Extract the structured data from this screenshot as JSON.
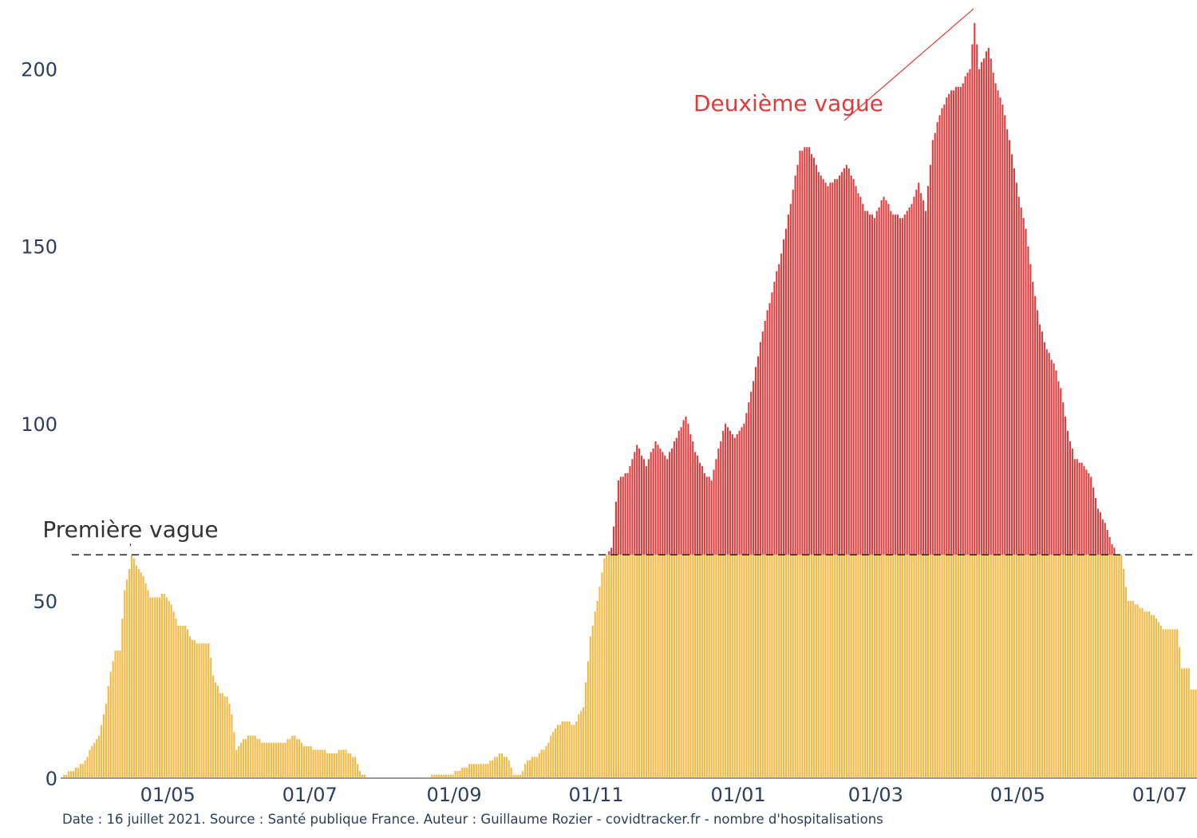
{
  "caption": "Date : 16 juillet 2021. Source : Santé publique France. Auteur : Guillaume Rozier - covidtracker.fr - nombre d'hospitalisations",
  "chart_data": {
    "type": "bar",
    "stacked": true,
    "x_range": [
      "2020-03-16",
      "2021-07-16"
    ],
    "ylim": [
      0,
      215
    ],
    "yticks": [
      0,
      50,
      100,
      150,
      200
    ],
    "xticks": [
      {
        "date": "2020-05-01",
        "label": "01/05"
      },
      {
        "date": "2020-07-01",
        "label": "01/07"
      },
      {
        "date": "2020-09-01",
        "label": "01/09"
      },
      {
        "date": "2020-11-01",
        "label": "01/11"
      },
      {
        "date": "2021-01-01",
        "label": "01/01"
      },
      {
        "date": "2021-03-01",
        "label": "01/03"
      },
      {
        "date": "2021-05-01",
        "label": "01/05"
      },
      {
        "date": "2021-07-01",
        "label": "01/07"
      }
    ],
    "threshold": 63,
    "grid": false,
    "colors": {
      "base": "#f5b942",
      "excess": "#e13a3a",
      "threshold": "#222222",
      "zero_line": "#999999"
    },
    "annotations": [
      {
        "text": "Première vague",
        "date": "2020-04-15",
        "y": 63,
        "color": "#333333"
      },
      {
        "text": "Deuxième vague",
        "date": "2021-04-12",
        "y": 217,
        "color": "#e13a3a"
      }
    ],
    "anchors": [
      [
        "2020-03-16",
        0
      ],
      [
        "2020-03-18",
        1
      ],
      [
        "2020-03-20",
        2
      ],
      [
        "2020-03-23",
        3
      ],
      [
        "2020-03-26",
        5
      ],
      [
        "2020-03-29",
        9
      ],
      [
        "2020-04-01",
        12
      ],
      [
        "2020-04-04",
        21
      ],
      [
        "2020-04-06",
        30
      ],
      [
        "2020-04-08",
        36
      ],
      [
        "2020-04-10",
        36
      ],
      [
        "2020-04-12",
        53
      ],
      [
        "2020-04-14",
        59
      ],
      [
        "2020-04-15",
        63
      ],
      [
        "2020-04-17",
        60
      ],
      [
        "2020-04-20",
        57
      ],
      [
        "2020-04-23",
        51
      ],
      [
        "2020-04-26",
        51
      ],
      [
        "2020-04-29",
        52
      ],
      [
        "2020-05-02",
        49
      ],
      [
        "2020-05-05",
        43
      ],
      [
        "2020-05-08",
        43
      ],
      [
        "2020-05-11",
        39
      ],
      [
        "2020-05-14",
        38
      ],
      [
        "2020-05-18",
        38
      ],
      [
        "2020-05-20",
        29
      ],
      [
        "2020-05-23",
        24
      ],
      [
        "2020-05-26",
        23
      ],
      [
        "2020-05-28",
        18
      ],
      [
        "2020-05-30",
        8
      ],
      [
        "2020-06-02",
        11
      ],
      [
        "2020-06-06",
        12
      ],
      [
        "2020-06-10",
        10
      ],
      [
        "2020-06-20",
        10
      ],
      [
        "2020-06-24",
        12
      ],
      [
        "2020-06-28",
        9
      ],
      [
        "2020-07-05",
        8
      ],
      [
        "2020-07-10",
        7
      ],
      [
        "2020-07-15",
        8
      ],
      [
        "2020-07-20",
        6
      ],
      [
        "2020-07-22",
        2
      ],
      [
        "2020-07-25",
        0
      ],
      [
        "2020-08-20",
        0
      ],
      [
        "2020-08-24",
        1
      ],
      [
        "2020-08-30",
        1
      ],
      [
        "2020-09-02",
        2
      ],
      [
        "2020-09-08",
        4
      ],
      [
        "2020-09-15",
        4
      ],
      [
        "2020-09-20",
        7
      ],
      [
        "2020-09-24",
        5
      ],
      [
        "2020-09-26",
        1
      ],
      [
        "2020-09-29",
        1
      ],
      [
        "2020-10-02",
        5
      ],
      [
        "2020-10-06",
        6
      ],
      [
        "2020-10-10",
        9
      ],
      [
        "2020-10-14",
        14
      ],
      [
        "2020-10-18",
        16
      ],
      [
        "2020-10-22",
        15
      ],
      [
        "2020-10-26",
        20
      ],
      [
        "2020-10-29",
        40
      ],
      [
        "2020-11-01",
        50
      ],
      [
        "2020-11-04",
        62
      ],
      [
        "2020-11-07",
        65
      ],
      [
        "2020-11-10",
        84
      ],
      [
        "2020-11-14",
        86
      ],
      [
        "2020-11-18",
        94
      ],
      [
        "2020-11-22",
        88
      ],
      [
        "2020-11-26",
        95
      ],
      [
        "2020-12-01",
        90
      ],
      [
        "2020-12-05",
        96
      ],
      [
        "2020-12-09",
        102
      ],
      [
        "2020-12-13",
        92
      ],
      [
        "2020-12-17",
        86
      ],
      [
        "2020-12-20",
        84
      ],
      [
        "2020-12-23",
        93
      ],
      [
        "2020-12-26",
        100
      ],
      [
        "2020-12-30",
        96
      ],
      [
        "2021-01-03",
        100
      ],
      [
        "2021-01-07",
        112
      ],
      [
        "2021-01-11",
        126
      ],
      [
        "2021-01-15",
        137
      ],
      [
        "2021-01-19",
        148
      ],
      [
        "2021-01-23",
        162
      ],
      [
        "2021-01-27",
        177
      ],
      [
        "2021-01-31",
        178
      ],
      [
        "2021-02-04",
        171
      ],
      [
        "2021-02-08",
        167
      ],
      [
        "2021-02-12",
        169
      ],
      [
        "2021-02-16",
        173
      ],
      [
        "2021-02-20",
        167
      ],
      [
        "2021-02-24",
        160
      ],
      [
        "2021-02-28",
        158
      ],
      [
        "2021-03-04",
        164
      ],
      [
        "2021-03-08",
        159
      ],
      [
        "2021-03-12",
        158
      ],
      [
        "2021-03-16",
        162
      ],
      [
        "2021-03-19",
        168
      ],
      [
        "2021-03-22",
        160
      ],
      [
        "2021-03-25",
        180
      ],
      [
        "2021-03-29",
        189
      ],
      [
        "2021-04-02",
        194
      ],
      [
        "2021-04-06",
        195
      ],
      [
        "2021-04-10",
        200
      ],
      [
        "2021-04-12",
        213
      ],
      [
        "2021-04-14",
        200
      ],
      [
        "2021-04-18",
        206
      ],
      [
        "2021-04-21",
        196
      ],
      [
        "2021-04-24",
        190
      ],
      [
        "2021-04-27",
        180
      ],
      [
        "2021-05-01",
        164
      ],
      [
        "2021-05-04",
        155
      ],
      [
        "2021-05-07",
        140
      ],
      [
        "2021-05-10",
        128
      ],
      [
        "2021-05-13",
        121
      ],
      [
        "2021-05-16",
        117
      ],
      [
        "2021-05-19",
        110
      ],
      [
        "2021-05-22",
        98
      ],
      [
        "2021-05-25",
        90
      ],
      [
        "2021-05-28",
        89
      ],
      [
        "2021-06-01",
        85
      ],
      [
        "2021-06-04",
        76
      ],
      [
        "2021-06-07",
        72
      ],
      [
        "2021-06-09",
        68
      ],
      [
        "2021-06-12",
        63
      ],
      [
        "2021-06-14",
        63
      ],
      [
        "2021-06-17",
        50
      ],
      [
        "2021-06-21",
        49
      ],
      [
        "2021-06-24",
        47
      ],
      [
        "2021-06-28",
        46
      ],
      [
        "2021-07-02",
        42
      ],
      [
        "2021-07-08",
        42
      ],
      [
        "2021-07-10",
        31
      ],
      [
        "2021-07-13",
        31
      ],
      [
        "2021-07-14",
        25
      ],
      [
        "2021-07-16",
        25
      ]
    ]
  }
}
